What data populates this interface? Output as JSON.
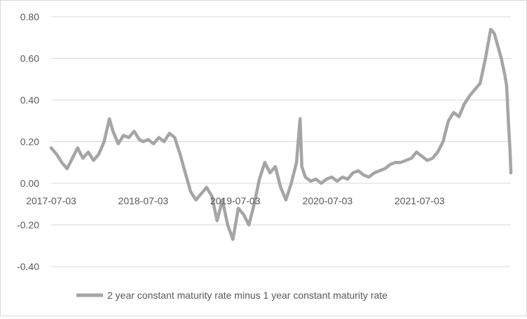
{
  "chart_data": {
    "type": "line",
    "title": "",
    "xlabel": "",
    "ylabel": "",
    "ylim": [
      -0.4,
      0.8
    ],
    "yticks": [
      "0.80",
      "0.60",
      "0.40",
      "0.20",
      "0.00",
      "-0.20",
      "-0.40"
    ],
    "ytick_values": [
      0.8,
      0.6,
      0.4,
      0.2,
      0.0,
      -0.2,
      -0.4
    ],
    "xticks": [
      "2017-07-03",
      "2018-07-03",
      "2019-07-03",
      "2020-07-03",
      "2021-07-03"
    ],
    "x_start": "2017-07-03",
    "x_end": "2022-06-30",
    "grid": "horizontal",
    "legend_position": "bottom",
    "line_color": "#a5a5a5",
    "series": [
      {
        "name": "2 year constant maturity rate minus 1 year constant maturity rate",
        "x": [
          "2017-07-03",
          "2017-07-24",
          "2017-08-14",
          "2017-09-04",
          "2017-09-25",
          "2017-10-16",
          "2017-11-06",
          "2017-11-27",
          "2017-12-18",
          "2018-01-08",
          "2018-01-29",
          "2018-02-19",
          "2018-03-05",
          "2018-03-26",
          "2018-04-16",
          "2018-05-07",
          "2018-05-28",
          "2018-06-18",
          "2018-07-03",
          "2018-07-23",
          "2018-08-13",
          "2018-09-03",
          "2018-09-24",
          "2018-10-15",
          "2018-11-05",
          "2018-11-26",
          "2018-12-17",
          "2019-01-07",
          "2019-01-28",
          "2019-02-18",
          "2019-03-11",
          "2019-04-01",
          "2019-04-22",
          "2019-05-13",
          "2019-06-03",
          "2019-06-24",
          "2019-07-15",
          "2019-08-05",
          "2019-08-26",
          "2019-09-16",
          "2019-10-07",
          "2019-10-28",
          "2019-11-18",
          "2019-12-09",
          "2019-12-30",
          "2020-01-20",
          "2020-02-10",
          "2020-03-02",
          "2020-03-16",
          "2020-03-23",
          "2020-04-06",
          "2020-04-27",
          "2020-05-18",
          "2020-06-08",
          "2020-06-29",
          "2020-07-20",
          "2020-08-10",
          "2020-08-31",
          "2020-09-21",
          "2020-10-12",
          "2020-11-02",
          "2020-11-23",
          "2020-12-14",
          "2021-01-04",
          "2021-01-25",
          "2021-02-15",
          "2021-03-08",
          "2021-03-29",
          "2021-04-19",
          "2021-05-10",
          "2021-05-31",
          "2021-06-21",
          "2021-07-12",
          "2021-08-02",
          "2021-08-23",
          "2021-09-13",
          "2021-10-04",
          "2021-10-25",
          "2021-11-15",
          "2021-12-06",
          "2021-12-27",
          "2022-01-17",
          "2022-02-07",
          "2022-02-28",
          "2022-03-21",
          "2022-04-11",
          "2022-04-25",
          "2022-05-09",
          "2022-05-23",
          "2022-06-06",
          "2022-06-13",
          "2022-06-20",
          "2022-06-27",
          "2022-06-30"
        ],
        "values": [
          0.17,
          0.14,
          0.1,
          0.07,
          0.12,
          0.17,
          0.12,
          0.15,
          0.11,
          0.14,
          0.2,
          0.31,
          0.25,
          0.19,
          0.23,
          0.22,
          0.25,
          0.21,
          0.2,
          0.21,
          0.19,
          0.22,
          0.2,
          0.24,
          0.22,
          0.14,
          0.05,
          -0.04,
          -0.08,
          -0.05,
          -0.02,
          -0.06,
          -0.18,
          -0.08,
          -0.2,
          -0.27,
          -0.12,
          -0.15,
          -0.2,
          -0.1,
          0.02,
          0.1,
          0.05,
          0.08,
          -0.02,
          -0.08,
          0.0,
          0.1,
          0.31,
          0.08,
          0.03,
          0.01,
          0.02,
          0.0,
          0.02,
          0.03,
          0.01,
          0.03,
          0.02,
          0.05,
          0.06,
          0.04,
          0.03,
          0.05,
          0.06,
          0.07,
          0.09,
          0.1,
          0.1,
          0.11,
          0.12,
          0.15,
          0.13,
          0.11,
          0.12,
          0.15,
          0.2,
          0.3,
          0.34,
          0.32,
          0.38,
          0.42,
          0.45,
          0.48,
          0.6,
          0.74,
          0.72,
          0.66,
          0.6,
          0.52,
          0.47,
          0.3,
          0.15,
          0.05
        ]
      }
    ]
  }
}
